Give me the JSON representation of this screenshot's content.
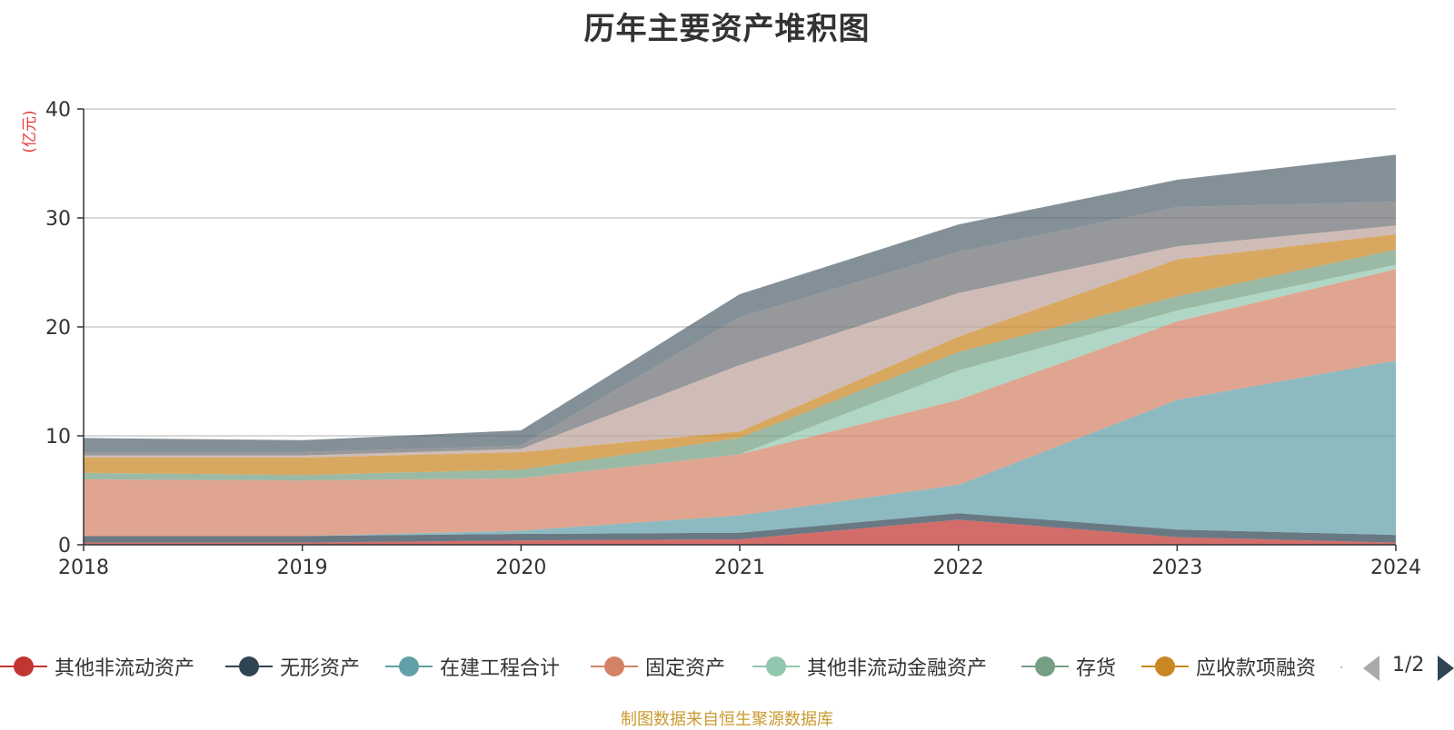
{
  "chart_data": {
    "type": "area",
    "title": "历年主要资产堆积图",
    "ylabel": "(亿元)",
    "xlabel": "",
    "ylim": [
      0,
      40
    ],
    "yticks": [
      0,
      10,
      20,
      30,
      40
    ],
    "grid": true,
    "legend_position": "bottom",
    "categories": [
      "2018",
      "2019",
      "2020",
      "2021",
      "2022",
      "2023",
      "2024"
    ],
    "series": [
      {
        "name": "其他非流动资产",
        "color": "#c23531",
        "values": [
          0.2,
          0.2,
          0.4,
          0.5,
          2.3,
          0.7,
          0.2
        ]
      },
      {
        "name": "无形资产",
        "color": "#2f4554",
        "values": [
          0.6,
          0.6,
          0.6,
          0.6,
          0.6,
          0.7,
          0.7
        ]
      },
      {
        "name": "在建工程合计",
        "color": "#61a0a8",
        "values": [
          0.0,
          0.0,
          0.3,
          1.6,
          2.6,
          11.9,
          16.0
        ]
      },
      {
        "name": "固定资产",
        "color": "#d48265",
        "values": [
          5.2,
          5.1,
          4.8,
          5.6,
          7.8,
          7.2,
          8.4
        ]
      },
      {
        "name": "其他非流动金融资产",
        "color": "#91c7ae",
        "values": [
          0.0,
          0.0,
          0.0,
          0.0,
          2.7,
          1.0,
          0.4
        ]
      },
      {
        "name": "存货",
        "color": "#749f83",
        "values": [
          0.6,
          0.5,
          0.8,
          1.5,
          1.7,
          1.3,
          1.4
        ]
      },
      {
        "name": "应收款项融资",
        "color": "#ca8622",
        "values": [
          1.4,
          1.6,
          1.6,
          0.6,
          1.4,
          3.4,
          1.4
        ]
      },
      {
        "name": "",
        "color": "#bda29a",
        "values": [
          0.2,
          0.2,
          0.3,
          6.1,
          4.0,
          1.2,
          0.8
        ]
      },
      {
        "name": "",
        "color": "#6e7074",
        "values": [
          0.3,
          0.3,
          0.3,
          4.4,
          3.8,
          3.6,
          2.2
        ]
      },
      {
        "name": "",
        "color": "#546570",
        "values": [
          1.3,
          1.1,
          1.4,
          2.1,
          2.5,
          2.5,
          4.3
        ]
      }
    ]
  },
  "legend": {
    "items": [
      {
        "label": "其他非流动资产",
        "color": "#c23531"
      },
      {
        "label": "无形资产",
        "color": "#2f4554"
      },
      {
        "label": "在建工程合计",
        "color": "#61a0a8"
      },
      {
        "label": "固定资产",
        "color": "#d48265"
      },
      {
        "label": "其他非流动金融资产",
        "color": "#91c7ae"
      },
      {
        "label": "存货",
        "color": "#749f83"
      },
      {
        "label": "应收款项融资",
        "color": "#ca8622"
      }
    ],
    "overflow": "·",
    "page": "1/2"
  },
  "source_note": "制图数据来自恒生聚源数据库"
}
